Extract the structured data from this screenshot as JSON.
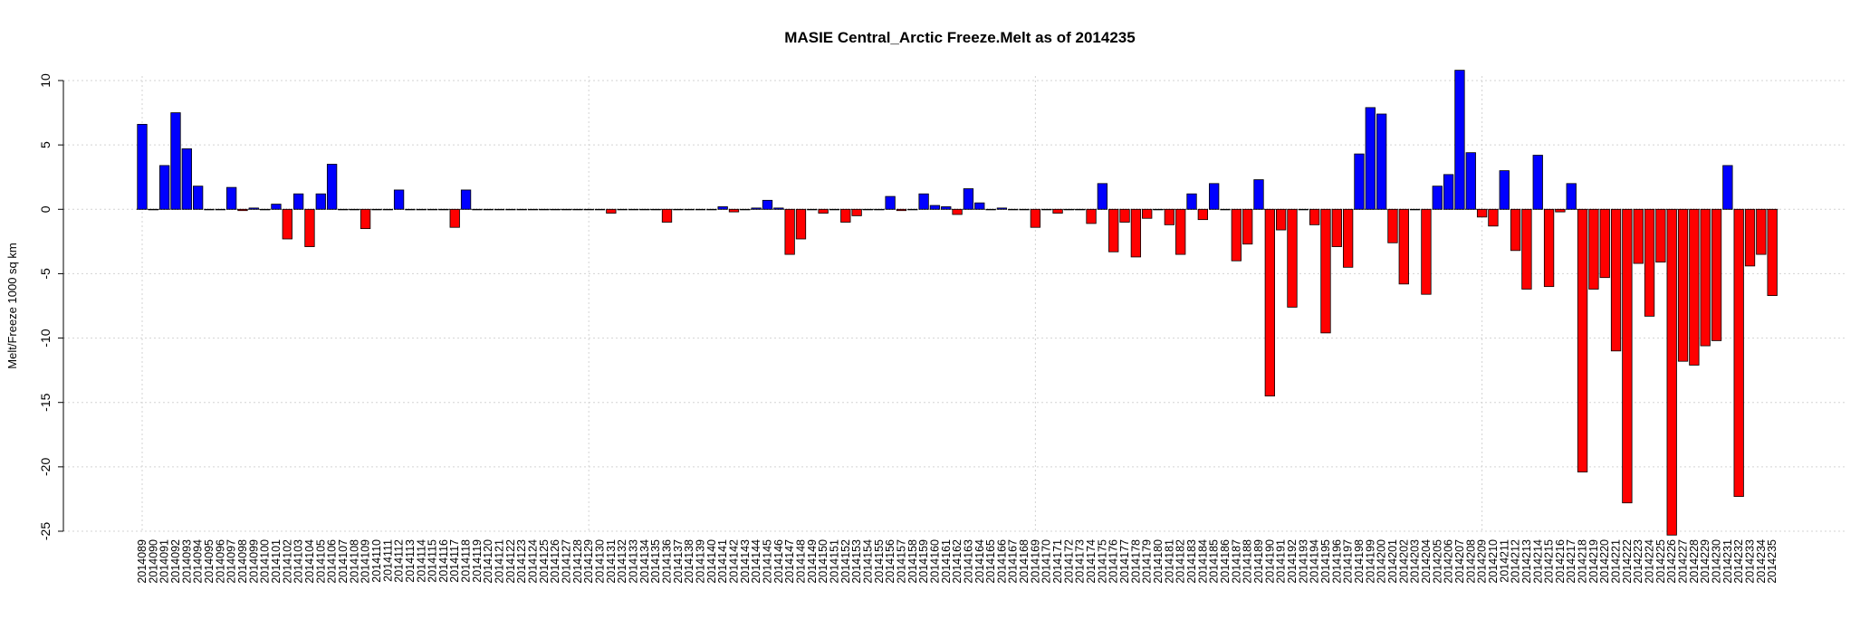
{
  "chart_data": {
    "type": "bar",
    "title": "MASIE Central_Arctic Freeze.Melt as of 2014235",
    "xlabel": "",
    "ylabel": "Melt/Freeze 1000 sq km",
    "ylim": [
      -25,
      10
    ],
    "yticks": [
      10,
      5,
      0,
      -5,
      -10,
      -15,
      -20,
      -25
    ],
    "grid": true,
    "colors": {
      "positive": "#0000ff",
      "negative": "#ff0000",
      "grid": "#d3d3d3"
    },
    "categories": [
      "2014089",
      "2014090",
      "2014091",
      "2014092",
      "2014093",
      "2014094",
      "2014095",
      "2014096",
      "2014097",
      "2014098",
      "2014099",
      "2014100",
      "2014101",
      "2014102",
      "2014103",
      "2014104",
      "2014105",
      "2014106",
      "2014107",
      "2014108",
      "2014109",
      "2014110",
      "2014111",
      "2014112",
      "2014113",
      "2014114",
      "2014115",
      "2014116",
      "2014117",
      "2014118",
      "2014119",
      "2014120",
      "2014121",
      "2014122",
      "2014123",
      "2014124",
      "2014125",
      "2014126",
      "2014127",
      "2014128",
      "2014129",
      "2014130",
      "2014131",
      "2014132",
      "2014133",
      "2014134",
      "2014135",
      "2014136",
      "2014137",
      "2014138",
      "2014139",
      "2014140",
      "2014141",
      "2014142",
      "2014143",
      "2014144",
      "2014145",
      "2014146",
      "2014147",
      "2014148",
      "2014149",
      "2014150",
      "2014151",
      "2014152",
      "2014153",
      "2014154",
      "2014155",
      "2014156",
      "2014157",
      "2014158",
      "2014159",
      "2014160",
      "2014161",
      "2014162",
      "2014163",
      "2014164",
      "2014165",
      "2014166",
      "2014167",
      "2014168",
      "2014169",
      "2014170",
      "2014171",
      "2014172",
      "2014173",
      "2014174",
      "2014175",
      "2014176",
      "2014177",
      "2014178",
      "2014179",
      "2014180",
      "2014181",
      "2014182",
      "2014183",
      "2014184",
      "2014185",
      "2014186",
      "2014187",
      "2014188",
      "2014189",
      "2014190",
      "2014191",
      "2014192",
      "2014193",
      "2014194",
      "2014195",
      "2014196",
      "2014197",
      "2014198",
      "2014199",
      "2014200",
      "2014201",
      "2014202",
      "2014203",
      "2014204",
      "2014205",
      "2014206",
      "2014207",
      "2014208",
      "2014209",
      "2014210",
      "2014211",
      "2014212",
      "2014213",
      "2014214",
      "2014215",
      "2014216",
      "2014217",
      "2014218",
      "2014219",
      "2014220",
      "2014221",
      "2014222",
      "2014223",
      "2014224",
      "2014225",
      "2014226",
      "2014227",
      "2014228",
      "2014229",
      "2014230",
      "2014231",
      "2014232",
      "2014233",
      "2014234",
      "2014235"
    ],
    "values": [
      6.6,
      0,
      3.4,
      7.5,
      4.7,
      1.8,
      0,
      0,
      1.7,
      -0.1,
      0.1,
      0,
      0.4,
      -2.3,
      1.2,
      -2.9,
      1.2,
      3.5,
      0,
      0,
      -1.5,
      0,
      0,
      1.5,
      0,
      0,
      0,
      0,
      -1.4,
      1.5,
      0,
      0,
      0,
      0,
      0,
      0,
      0,
      0,
      0,
      0,
      0,
      0,
      -0.3,
      0,
      0,
      0,
      0,
      -1.0,
      0,
      0,
      0,
      0,
      0.2,
      -0.2,
      0,
      0.1,
      0.7,
      0.1,
      -3.5,
      -2.3,
      0,
      -0.3,
      0,
      -1.0,
      -0.5,
      0,
      0,
      1.0,
      -0.1,
      0,
      1.2,
      0.3,
      0.2,
      -0.4,
      1.6,
      0.5,
      0,
      0.1,
      0,
      0,
      -1.4,
      0,
      -0.3,
      0,
      0,
      -1.1,
      2.0,
      -3.3,
      -1.0,
      -3.7,
      -0.7,
      0,
      -1.2,
      -3.5,
      1.2,
      -0.8,
      2.0,
      0,
      -4.0,
      -2.7,
      2.3,
      -14.5,
      -1.6,
      -7.6,
      0,
      -1.2,
      -9.6,
      -2.9,
      -4.5,
      4.3,
      7.9,
      7.4,
      -2.6,
      -5.8,
      0,
      -6.6,
      1.8,
      2.7,
      10.8,
      4.4,
      -0.6,
      -1.3,
      3.0,
      -3.2,
      -6.2,
      4.2,
      -6.0,
      -0.2,
      2.0,
      -20.4,
      -6.2,
      -5.3,
      -11.0,
      -22.8,
      -4.2,
      -8.3,
      -4.1,
      -25.3,
      -11.8,
      -12.1,
      -10.6,
      -10.2,
      3.4,
      -22.3,
      -4.4,
      -3.5,
      -6.7
    ]
  }
}
